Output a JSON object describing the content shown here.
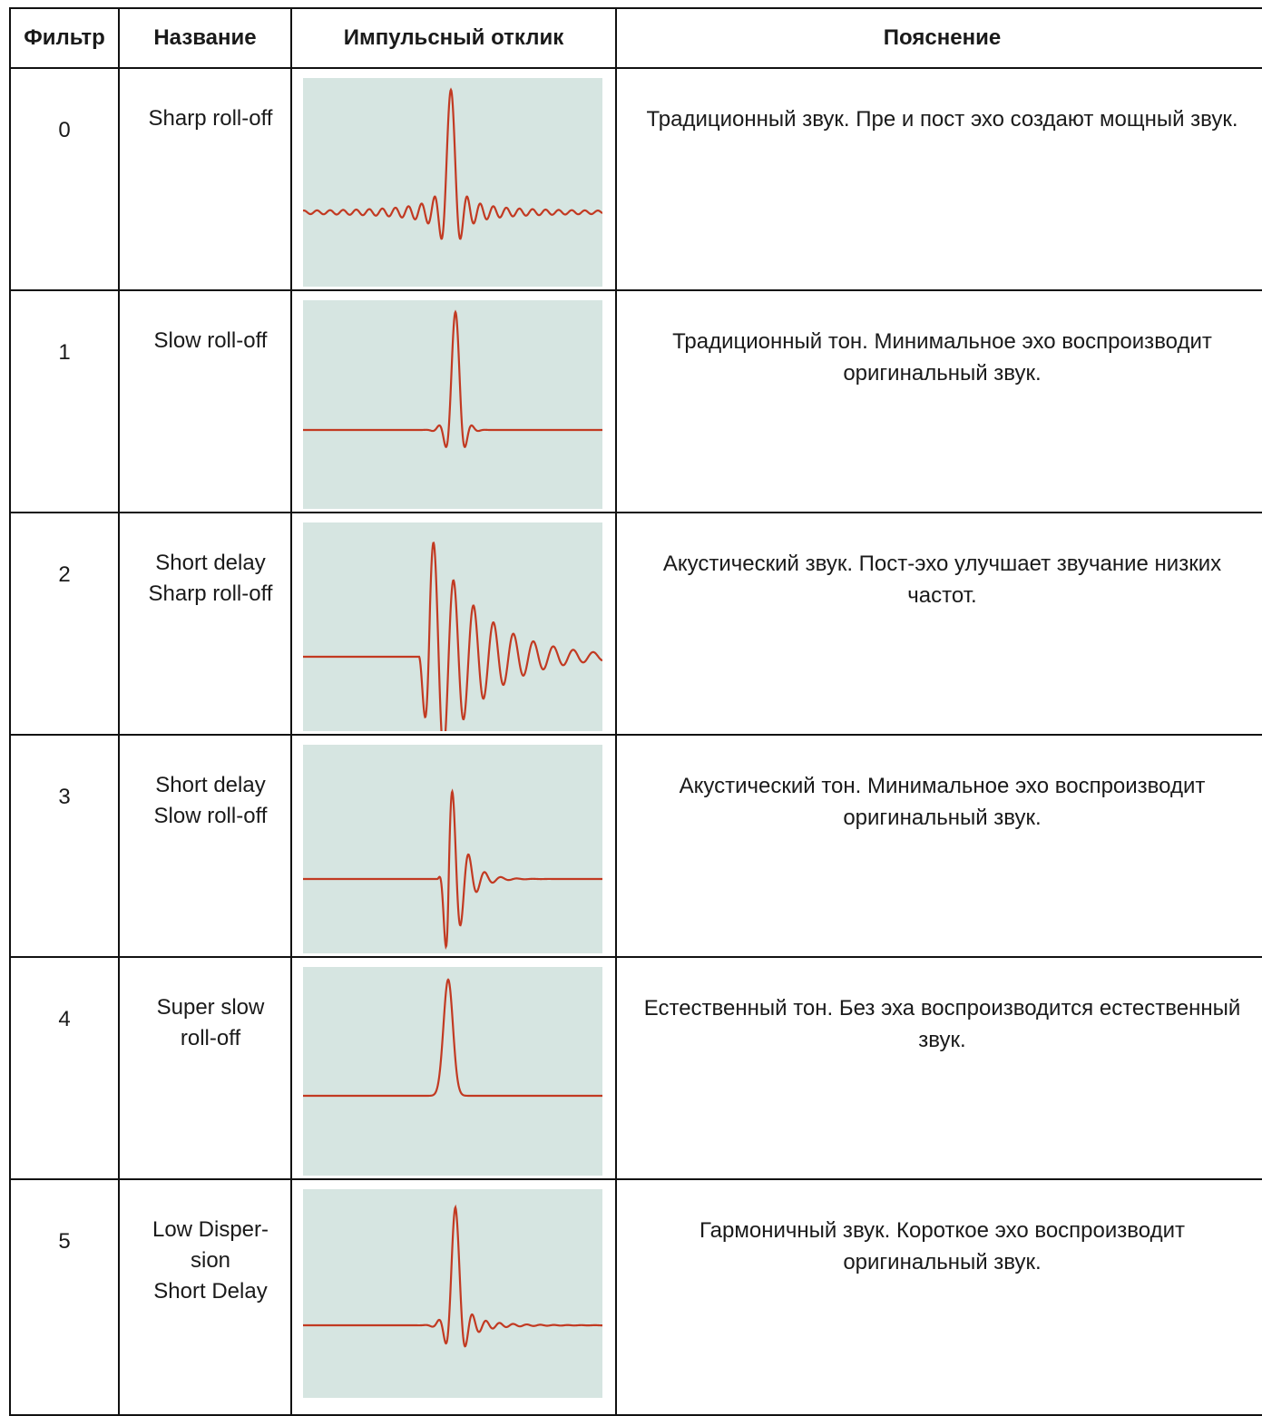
{
  "table": {
    "headers": {
      "filter": "Фильтр",
      "name": "Название",
      "impulse": "Импульсный отклик",
      "explanation": "Пояснение"
    },
    "rows": [
      {
        "filter": "0",
        "name": "Sharp roll-off",
        "explanation": "Традиционный звук. Пре и пост эхо создают мощный звук.",
        "waveform": "symmetric-long-ringing-icon"
      },
      {
        "filter": "1",
        "name": "Slow roll-off",
        "explanation": "Традиционный тон. Минимальное эхо воспроизводит оригинальный звук.",
        "waveform": "symmetric-short-ringing-icon"
      },
      {
        "filter": "2",
        "name": "Short delay\nSharp roll-off",
        "explanation": "Акустический звук. Пост-эхо улучшает звучание низких частот.",
        "waveform": "post-ringing-long-icon"
      },
      {
        "filter": "3",
        "name": "Short delay\nSlow roll-off",
        "explanation": "Акустический тон. Минимальное эхо воспроизводит оригинальный звук.",
        "waveform": "post-ringing-short-icon"
      },
      {
        "filter": "4",
        "name": "Super slow\nroll-off",
        "explanation": "Естественный тон. Без эха воспроизводится естественный звук.",
        "waveform": "single-pulse-icon"
      },
      {
        "filter": "5",
        "name": "Low Disper-\nsion\nShort Delay",
        "explanation": "Гармоничный звук. Короткое эхо воспроизводит оригинальный звук.",
        "waveform": "low-dispersion-ringing-icon"
      }
    ]
  },
  "colors": {
    "waveform_line": "#c23a22",
    "plot_background": "#d6e5e1",
    "border": "#111111"
  }
}
